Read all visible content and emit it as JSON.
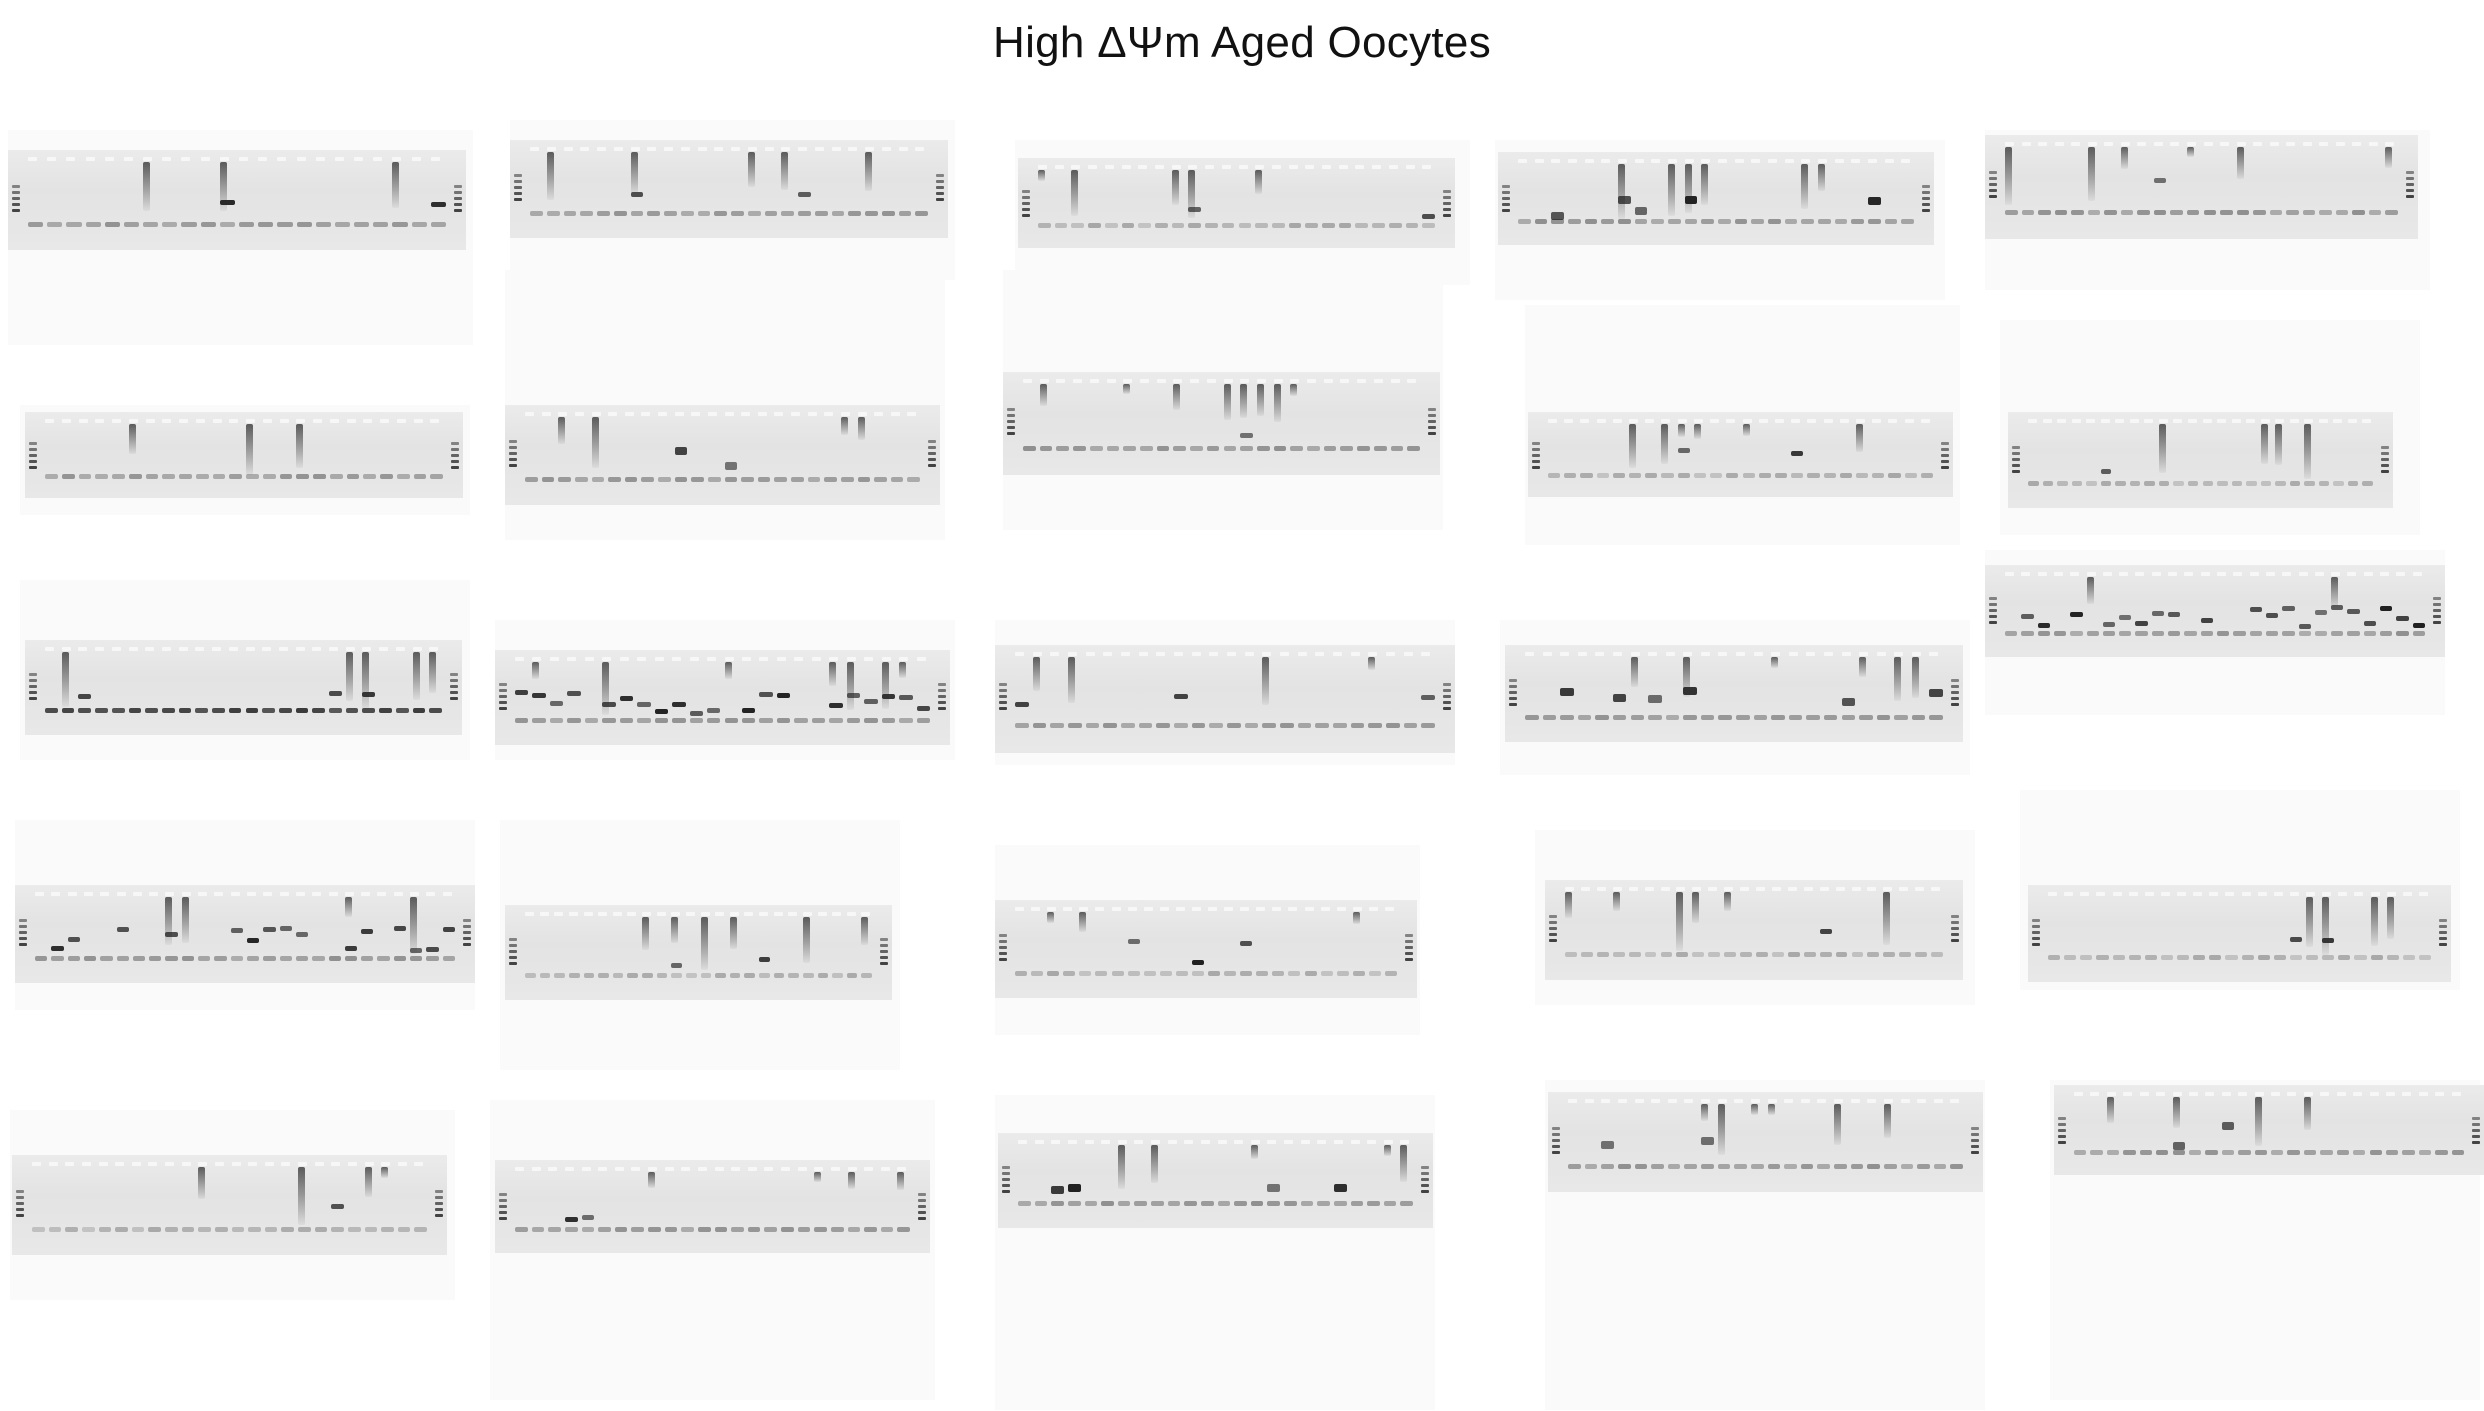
{
  "header": {
    "title": "High ΔΨm Aged Oocytes"
  },
  "figure": {
    "grid": {
      "rows": 5,
      "columns": 5
    },
    "panel_type": "agarose-gel-electrophoresis",
    "colors": {
      "background": "#ffffff",
      "gel": "#e6e6e6",
      "band": "#2a2a2a"
    },
    "panels": [
      {
        "id": "r1c1"
      },
      {
        "id": "r1c2"
      },
      {
        "id": "r1c3"
      },
      {
        "id": "r1c4"
      },
      {
        "id": "r1c5"
      },
      {
        "id": "r2c1"
      },
      {
        "id": "r2c2"
      },
      {
        "id": "r2c3"
      },
      {
        "id": "r2c4"
      },
      {
        "id": "r2c5"
      },
      {
        "id": "r3c1"
      },
      {
        "id": "r3c2"
      },
      {
        "id": "r3c3"
      },
      {
        "id": "r3c4"
      },
      {
        "id": "r3c5"
      },
      {
        "id": "r4c1"
      },
      {
        "id": "r4c2"
      },
      {
        "id": "r4c3"
      },
      {
        "id": "r4c4"
      },
      {
        "id": "r4c5"
      },
      {
        "id": "r5c1"
      },
      {
        "id": "r5c2"
      },
      {
        "id": "r5c3"
      },
      {
        "id": "r5c4"
      },
      {
        "id": "r5c5"
      }
    ]
  }
}
